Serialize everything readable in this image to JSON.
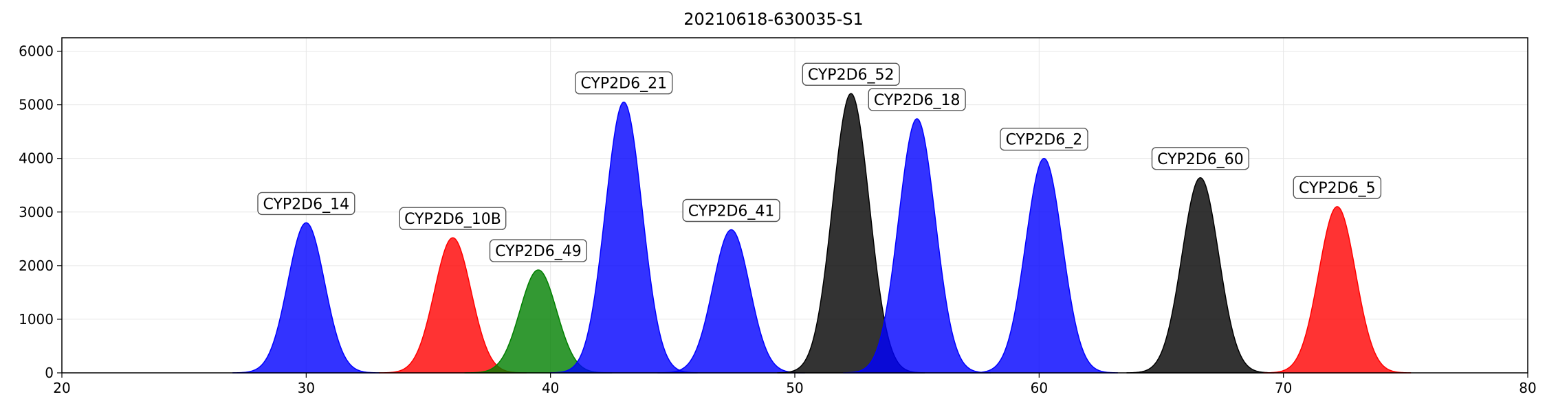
{
  "chart_data": {
    "type": "area",
    "title": "20210618-630035-S1",
    "xlabel": "",
    "ylabel": "",
    "xlim": [
      20,
      80
    ],
    "ylim": [
      0,
      6250
    ],
    "x_ticks": [
      20,
      30,
      40,
      50,
      60,
      70,
      80
    ],
    "y_ticks": [
      0,
      1000,
      2000,
      3000,
      4000,
      5000,
      6000
    ],
    "grid": true,
    "peaks": [
      {
        "label": "CYP2D6_14",
        "center": 30.0,
        "height": 2800,
        "color": "#0000ff"
      },
      {
        "label": "CYP2D6_10B",
        "center": 36.0,
        "height": 2520,
        "color": "#ff0000"
      },
      {
        "label": "CYP2D6_49",
        "center": 39.5,
        "height": 1920,
        "color": "#008000"
      },
      {
        "label": "CYP2D6_21",
        "center": 43.0,
        "height": 5050,
        "color": "#0000ff"
      },
      {
        "label": "CYP2D6_41",
        "center": 47.4,
        "height": 2670,
        "color": "#0000ff"
      },
      {
        "label": "CYP2D6_52",
        "center": 52.3,
        "height": 5210,
        "color": "#000000"
      },
      {
        "label": "CYP2D6_18",
        "center": 55.0,
        "height": 4740,
        "color": "#0000ff"
      },
      {
        "label": "CYP2D6_2",
        "center": 60.2,
        "height": 4000,
        "color": "#0000ff"
      },
      {
        "label": "CYP2D6_60",
        "center": 66.6,
        "height": 3640,
        "color": "#000000"
      },
      {
        "label": "CYP2D6_5",
        "center": 72.2,
        "height": 3100,
        "color": "#ff0000"
      }
    ]
  }
}
